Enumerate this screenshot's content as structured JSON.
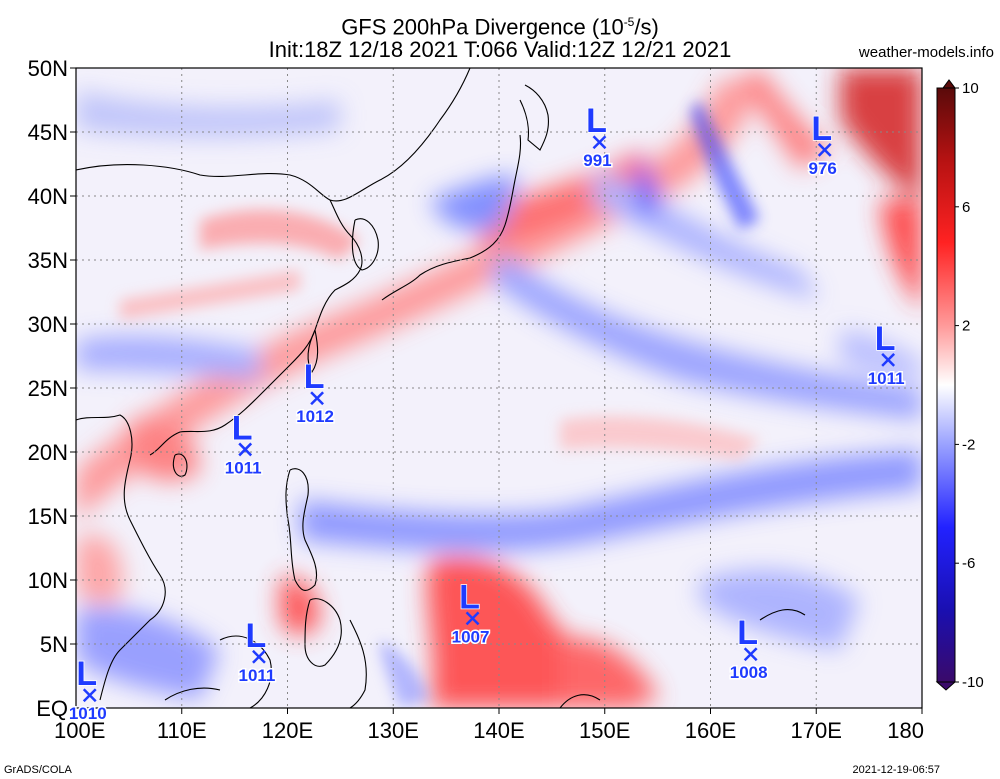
{
  "header": {
    "title_line1_prefix": "GFS 200hPa Divergence (10",
    "title_line1_exp": "-5",
    "title_line1_suffix": "/s)",
    "title_line2": "Init:18Z 12/18 2021 T:066 Valid:12Z 12/21 2021",
    "credit": "weather-models.info"
  },
  "footer": {
    "left": "GrADS/COLA",
    "right": "2021-12-19-06:57"
  },
  "map": {
    "lon_range": [
      100,
      180
    ],
    "lat_range": [
      0,
      50
    ],
    "lat_labels": [
      "50N",
      "45N",
      "40N",
      "35N",
      "30N",
      "25N",
      "20N",
      "15N",
      "10N",
      "5N",
      "EQ"
    ],
    "lat_values": [
      50,
      45,
      40,
      35,
      30,
      25,
      20,
      15,
      10,
      5,
      0
    ],
    "lon_labels": [
      "100E",
      "110E",
      "120E",
      "130E",
      "140E",
      "150E",
      "160E",
      "170E",
      "180"
    ],
    "lon_values": [
      100,
      110,
      120,
      130,
      140,
      150,
      160,
      170,
      180
    ]
  },
  "colorbar": {
    "labels": [
      "10",
      "6",
      "2",
      "-2",
      "-6",
      "-10"
    ],
    "values": [
      10,
      6,
      2,
      -2,
      -6,
      -10
    ],
    "colors": [
      "#5a0a0a",
      "#b51212",
      "#ff2222",
      "#ff9a9a",
      "#ffffff",
      "#9aa2ff",
      "#2222ff",
      "#1a0fb0",
      "#3a0a6a"
    ]
  },
  "lows": [
    {
      "pressure": "991",
      "lon": 149.5,
      "lat": 44.2
    },
    {
      "pressure": "976",
      "lon": 170.8,
      "lat": 43.6
    },
    {
      "pressure": "1011",
      "lon": 176.8,
      "lat": 27.2
    },
    {
      "pressure": "1012",
      "lon": 122.8,
      "lat": 24.2
    },
    {
      "pressure": "1011",
      "lon": 116.0,
      "lat": 20.2
    },
    {
      "pressure": "1007",
      "lon": 137.5,
      "lat": 7.0
    },
    {
      "pressure": "1011",
      "lon": 117.3,
      "lat": 4.0
    },
    {
      "pressure": "1008",
      "lon": 163.8,
      "lat": 4.2
    },
    {
      "pressure": "1010",
      "lon": 101.3,
      "lat": 1.0
    }
  ]
}
